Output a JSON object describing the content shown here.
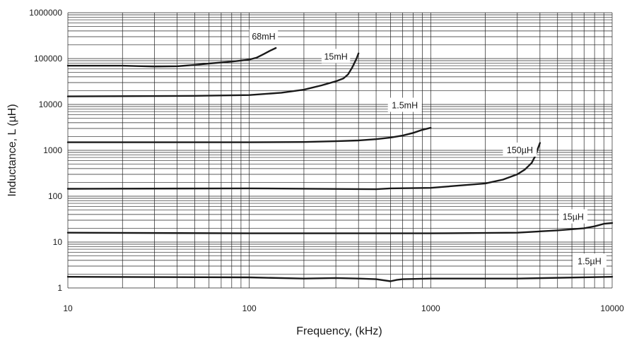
{
  "chart_data": {
    "type": "line",
    "title": "",
    "xlabel": "Frequency, (kHz)",
    "ylabel": "Inductance, L (µH)",
    "x_scale": "log",
    "y_scale": "log",
    "xlim": [
      10,
      10000
    ],
    "ylim": [
      1,
      1000000
    ],
    "x_ticks": [
      "10",
      "100",
      "1000",
      "10000"
    ],
    "y_ticks": [
      "1",
      "10",
      "100",
      "1000",
      "10000",
      "100000",
      "1000000"
    ],
    "grid": true,
    "series": [
      {
        "name": "68mH",
        "x": [
          10,
          20,
          30,
          40,
          50,
          60,
          70,
          80,
          100,
          110,
          120,
          130,
          140
        ],
        "y": [
          70000,
          70000,
          67000,
          68000,
          73000,
          78000,
          82000,
          86000,
          95000,
          105000,
          125000,
          148000,
          170000
        ]
      },
      {
        "name": "15mH",
        "x": [
          10,
          50,
          100,
          150,
          200,
          250,
          300,
          330,
          350,
          370,
          390,
          400
        ],
        "y": [
          15000,
          15400,
          16000,
          18000,
          21000,
          26000,
          32000,
          37000,
          45000,
          65000,
          100000,
          130000
        ]
      },
      {
        "name": "1.5mH",
        "x": [
          10,
          100,
          200,
          300,
          400,
          500,
          600,
          700,
          800,
          900,
          1000
        ],
        "y": [
          1500,
          1500,
          1520,
          1580,
          1640,
          1750,
          1900,
          2100,
          2400,
          2800,
          3100
        ]
      },
      {
        "name": "150µH",
        "x": [
          10,
          100,
          500,
          600,
          1000,
          2000,
          2500,
          3000,
          3300,
          3600,
          3800,
          3900,
          4000
        ],
        "y": [
          145,
          148,
          142,
          148,
          152,
          190,
          230,
          300,
          380,
          530,
          800,
          1100,
          1450
        ]
      },
      {
        "name": "15µH",
        "x": [
          10,
          100,
          1000,
          3000,
          5000,
          7000,
          8000,
          9000,
          10000
        ],
        "y": [
          16,
          15.5,
          15.5,
          16,
          18,
          20,
          22,
          25,
          26
        ]
      },
      {
        "name": "1.5µH",
        "x": [
          10,
          100,
          200,
          300,
          400,
          500,
          600,
          650,
          700,
          1000,
          3000,
          10000
        ],
        "y": [
          1.75,
          1.7,
          1.6,
          1.65,
          1.6,
          1.55,
          1.4,
          1.5,
          1.55,
          1.6,
          1.6,
          1.75
        ]
      }
    ],
    "labels": [
      {
        "text": "68mH",
        "x": 120,
        "y": 300000
      },
      {
        "text": "15mH",
        "x": 300,
        "y": 110000
      },
      {
        "text": "1.5mH",
        "x": 720,
        "y": 9500
      },
      {
        "text": "150µH",
        "x": 3100,
        "y": 1000
      },
      {
        "text": "15µH",
        "x": 6100,
        "y": 35
      },
      {
        "text": "1.5µH",
        "x": 7500,
        "y": 3.8
      }
    ]
  }
}
